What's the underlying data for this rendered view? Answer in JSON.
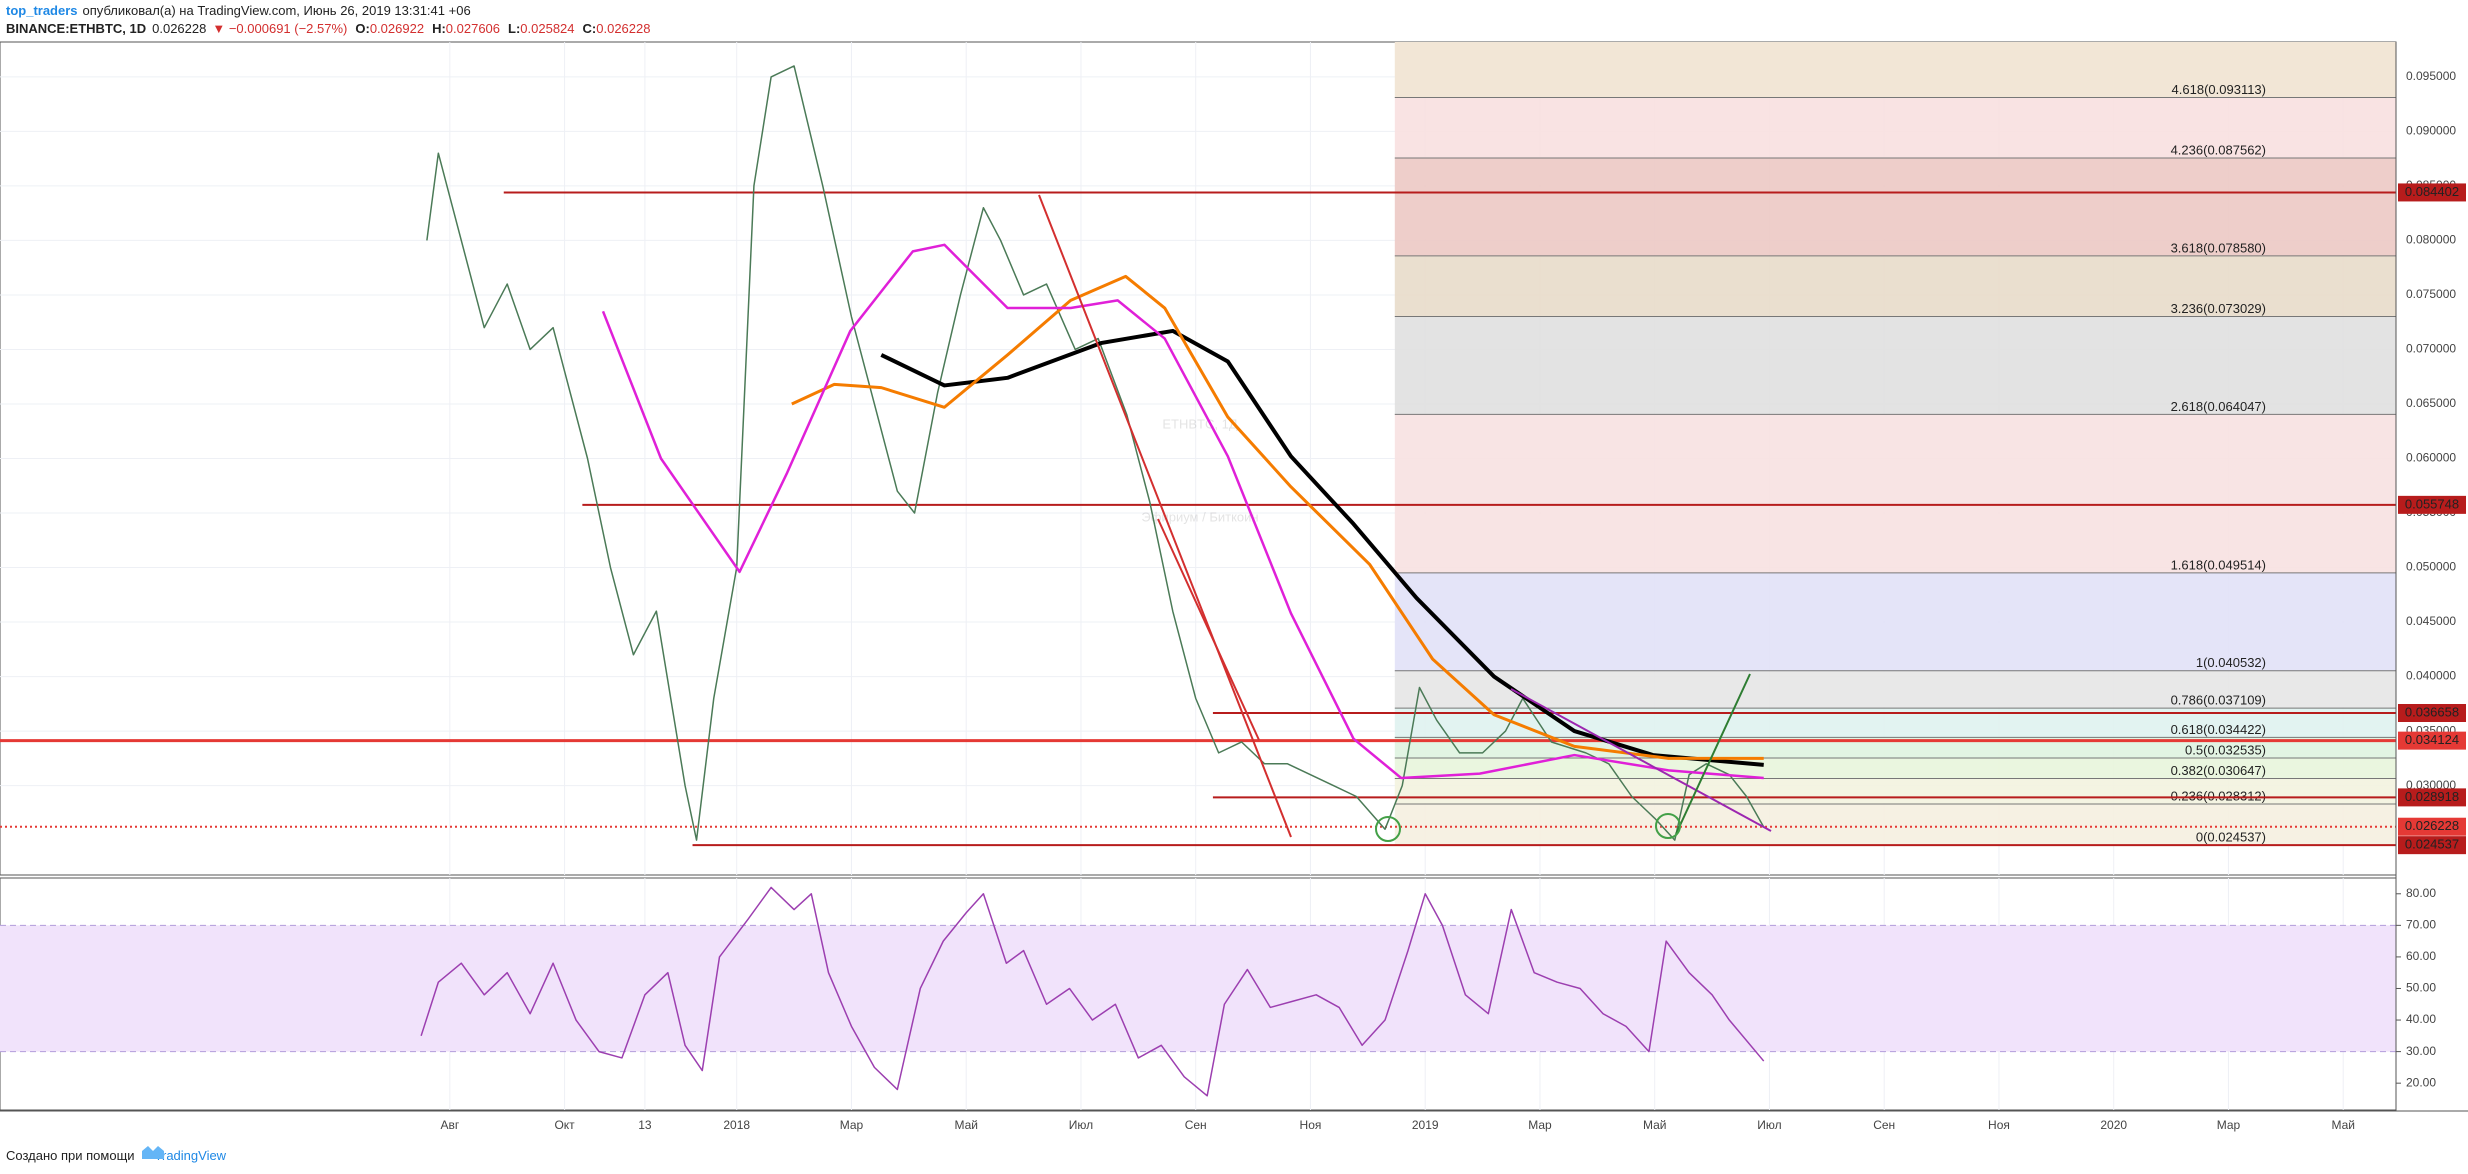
{
  "header": {
    "user": "top_traders",
    "published": "опубликовал(а) на TradingView.com, Июнь 26, 2019 13:31:41 +06",
    "symbol": "BINANCE:ETHBTC, 1D",
    "last": "0.026228",
    "change": "▼ −0.000691 (−2.57%)",
    "ohlc": [
      {
        "label": "O:",
        "value": "0.026922"
      },
      {
        "label": "H:",
        "value": "0.027606"
      },
      {
        "label": "L:",
        "value": "0.025824"
      },
      {
        "label": "C:",
        "value": "0.026228"
      }
    ]
  },
  "chart_data": [
    {
      "type": "line",
      "title": "ETHBTC, 1Д",
      "subtitle": "Эфириум / Биткоин",
      "grid": true,
      "xlim": [
        -12.84,
        28.92
      ],
      "xticks": [
        {
          "value": -5,
          "label": "Авг"
        },
        {
          "value": -3,
          "label": "Окт"
        },
        {
          "value": -1.6,
          "label": "13"
        },
        {
          "value": 0,
          "label": "2018"
        },
        {
          "value": 2,
          "label": "Мар"
        },
        {
          "value": 4,
          "label": "Май"
        },
        {
          "value": 6,
          "label": "Июл"
        },
        {
          "value": 8,
          "label": "Сен"
        },
        {
          "value": 10,
          "label": "Ноя"
        },
        {
          "value": 12,
          "label": "2019"
        },
        {
          "value": 14,
          "label": "Мар"
        },
        {
          "value": 16,
          "label": "Май"
        },
        {
          "value": 18,
          "label": "Июл"
        },
        {
          "value": 20,
          "label": "Сен"
        },
        {
          "value": 22,
          "label": "Ноя"
        },
        {
          "value": 24,
          "label": "2020"
        },
        {
          "value": 26,
          "label": "Мар"
        },
        {
          "value": 28,
          "label": "Май"
        }
      ],
      "ylim": [
        0.0218,
        0.0982
      ],
      "yticks": [
        {
          "value": 0.03,
          "label": "0.030000"
        },
        {
          "value": 0.035,
          "label": "0.035000"
        },
        {
          "value": 0.04,
          "label": "0.040000"
        },
        {
          "value": 0.045,
          "label": "0.045000"
        },
        {
          "value": 0.05,
          "label": "0.050000"
        },
        {
          "value": 0.055,
          "label": "0.055000"
        },
        {
          "value": 0.06,
          "label": "0.060000"
        },
        {
          "value": 0.065,
          "label": "0.065000"
        },
        {
          "value": 0.07,
          "label": "0.070000"
        },
        {
          "value": 0.075,
          "label": "0.075000"
        },
        {
          "value": 0.08,
          "label": "0.080000"
        },
        {
          "value": 0.085,
          "label": "0.085000"
        },
        {
          "value": 0.09,
          "label": "0.090000"
        },
        {
          "value": 0.095,
          "label": "0.095000"
        }
      ],
      "series": [
        {
          "color": "#4b7a57",
          "width": 1.5,
          "x": [
            -5.4,
            -5.2,
            -4.8,
            -4.4,
            -4.0,
            -3.6,
            -3.2,
            -2.6,
            -2.2,
            -1.8,
            -1.4,
            -0.9,
            -0.7,
            -0.4,
            0,
            0.3,
            0.6,
            1.0,
            1.5,
            2.0,
            2.4,
            2.8,
            3.1,
            3.5,
            3.9,
            4.3,
            4.6,
            5.0,
            5.4,
            5.9,
            6.3,
            6.8,
            7.2,
            7.6,
            8.0,
            8.4,
            8.8,
            9.2,
            9.6,
            10.0,
            10.4,
            10.8,
            11.3,
            11.6,
            11.9,
            12.2,
            12.6,
            13.0,
            13.4,
            13.7,
            14.2,
            14.8,
            15.2,
            15.6,
            16.0,
            16.35,
            16.6,
            16.9,
            17.3,
            17.6,
            17.9
          ],
          "values": [
            0.08,
            0.088,
            0.08,
            0.072,
            0.076,
            0.07,
            0.072,
            0.06,
            0.05,
            0.042,
            0.046,
            0.03,
            0.025,
            0.038,
            0.05,
            0.085,
            0.095,
            0.096,
            0.085,
            0.073,
            0.065,
            0.057,
            0.055,
            0.066,
            0.075,
            0.083,
            0.08,
            0.075,
            0.076,
            0.07,
            0.071,
            0.064,
            0.056,
            0.046,
            0.038,
            0.033,
            0.034,
            0.032,
            0.032,
            0.031,
            0.03,
            0.029,
            0.026,
            0.03,
            0.039,
            0.036,
            0.033,
            0.033,
            0.035,
            0.038,
            0.034,
            0.033,
            0.032,
            0.029,
            0.027,
            0.025,
            0.031,
            0.032,
            0.031,
            0.029,
            0.0262
          ]
        },
        {
          "color": "#000000",
          "width": 4,
          "x": [
            2.52,
            3.62,
            4.72,
            6.36,
            7.6,
            8.56,
            9.66,
            10.75,
            11.85,
            13.2,
            14.6,
            15.97,
            17.9
          ],
          "values": [
            0.0695,
            0.0667,
            0.0674,
            0.0706,
            0.0717,
            0.0689,
            0.0602,
            0.054,
            0.0472,
            0.04,
            0.035,
            0.0328,
            0.0319
          ]
        },
        {
          "color": "#f57c00",
          "width": 3,
          "x": [
            0.96,
            1.7,
            2.52,
            3.62,
            4.72,
            5.82,
            6.78,
            7.46,
            8.56,
            9.66,
            11.03,
            12.13,
            13.2,
            14.6,
            16.24,
            17.9
          ],
          "values": [
            0.065,
            0.0668,
            0.0665,
            0.0647,
            0.0695,
            0.0745,
            0.0767,
            0.0738,
            0.0638,
            0.0574,
            0.0503,
            0.0416,
            0.0365,
            0.0336,
            0.0325,
            0.0325
          ]
        },
        {
          "color": "#e020d8",
          "width": 2.5,
          "x": [
            -2.33,
            -1.32,
            0.05,
            0.88,
            1.98,
            3.07,
            3.62,
            4.72,
            5.82,
            6.64,
            7.46,
            8.56,
            9.66,
            10.75,
            11.58,
            12.95,
            14.6,
            16.24,
            17.9
          ],
          "values": [
            0.0735,
            0.06,
            0.0496,
            0.0587,
            0.0717,
            0.079,
            0.0796,
            0.0738,
            0.0738,
            0.0745,
            0.071,
            0.0602,
            0.0458,
            0.0343,
            0.0307,
            0.0311,
            0.0328,
            0.0314,
            0.0307
          ]
        }
      ],
      "price_lines": [
        {
          "value": 0.084402,
          "color": "#b71c1c"
        },
        {
          "value": 0.055748,
          "color": "#b71c1c"
        },
        {
          "value": 0.036658,
          "color": "#b71c1c"
        },
        {
          "value": 0.034124,
          "color": "#e53935"
        },
        {
          "value": 0.028918,
          "color": "#b71c1c"
        },
        {
          "value": 0.026228,
          "color": "#e53935"
        },
        {
          "value": 0.024537,
          "color": "#b71c1c"
        }
      ],
      "fib_levels": [
        {
          "value": 0.093113,
          "label": "4.618(0.093113)",
          "color": "#f2e6d6"
        },
        {
          "value": 0.087562,
          "label": "4.236(0.087562)",
          "color": "#f8e0e0"
        },
        {
          "value": 0.07858,
          "label": "3.618(0.078580)",
          "color": "#ecc9c4"
        },
        {
          "value": 0.073029,
          "label": "3.236(0.073029)",
          "color": "#e8dcca"
        },
        {
          "value": 0.064047,
          "label": "2.618(0.064047)",
          "color": "#e0e0e0"
        },
        {
          "value": 0.049514,
          "label": "1.618(0.049514)",
          "color": "#f7e1e1"
        },
        {
          "value": 0.040532,
          "label": "1(0.040532)",
          "color": "#e1e1f7"
        },
        {
          "value": 0.037109,
          "label": "0.786(0.037109)",
          "color": "#e6e6e6"
        },
        {
          "value": 0.034422,
          "label": "0.618(0.034422)",
          "color": "#dff2f0"
        },
        {
          "value": 0.032535,
          "label": "0.5(0.032535)",
          "color": "#dff3e0"
        },
        {
          "value": 0.030647,
          "label": "0.382(0.030647)",
          "color": "#e8f5dc"
        },
        {
          "value": 0.028312,
          "label": "0.236(0.028312)",
          "color": "#f3f3df"
        },
        {
          "value": 0.024537,
          "label": "0(0.024537)",
          "color": "#f5f0e0"
        }
      ]
    },
    {
      "type": "line",
      "color": "#9c3fb0",
      "ylim": [
        11.5,
        85
      ],
      "band": [
        30,
        70
      ],
      "yticks": [
        {
          "value": 20,
          "label": "20.00"
        },
        {
          "value": 30,
          "label": "30.00"
        },
        {
          "value": 40,
          "label": "40.00"
        },
        {
          "value": 50,
          "label": "50.00"
        },
        {
          "value": 60,
          "label": "60.00"
        },
        {
          "value": 70,
          "label": "70.00"
        },
        {
          "value": 80,
          "label": "80.00"
        }
      ],
      "x": [
        -5.5,
        -5.2,
        -4.8,
        -4.4,
        -4.0,
        -3.6,
        -3.2,
        -2.8,
        -2.4,
        -2.0,
        -1.6,
        -1.2,
        -0.9,
        -0.6,
        -0.3,
        0.2,
        0.6,
        1.0,
        1.3,
        1.6,
        2.0,
        2.4,
        2.8,
        3.2,
        3.6,
        4.0,
        4.3,
        4.7,
        5.0,
        5.4,
        5.8,
        6.2,
        6.6,
        7.0,
        7.4,
        7.8,
        8.2,
        8.5,
        8.9,
        9.3,
        9.7,
        10.1,
        10.5,
        10.9,
        11.3,
        11.7,
        12.0,
        12.3,
        12.7,
        13.1,
        13.5,
        13.9,
        14.3,
        14.7,
        15.1,
        15.5,
        15.9,
        16.2,
        16.6,
        17.0,
        17.3,
        17.9
      ],
      "values": [
        35,
        52,
        58,
        48,
        55,
        42,
        58,
        40,
        30,
        28,
        48,
        55,
        32,
        24,
        60,
        72,
        82,
        75,
        80,
        55,
        38,
        25,
        18,
        50,
        65,
        74,
        80,
        58,
        62,
        45,
        50,
        40,
        45,
        28,
        32,
        22,
        16,
        45,
        56,
        44,
        46,
        48,
        44,
        32,
        40,
        62,
        80,
        70,
        48,
        42,
        75,
        55,
        52,
        50,
        42,
        38,
        30,
        65,
        55,
        48,
        40,
        27
      ]
    }
  ],
  "footer": {
    "text": "Создано при помощи",
    "brand": "TradingView"
  }
}
